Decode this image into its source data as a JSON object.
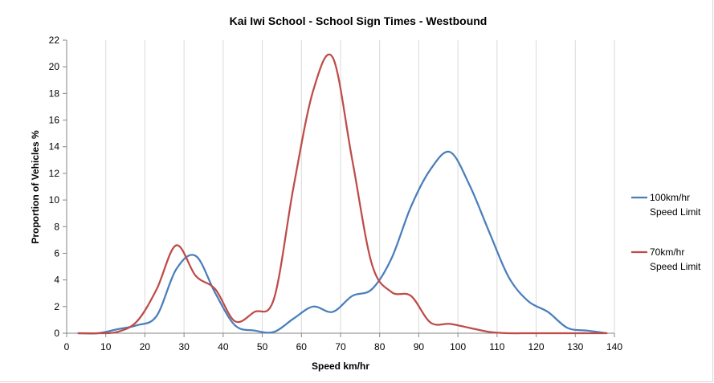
{
  "chart_data": {
    "type": "line",
    "title": "Kai Iwi School - School Sign Times - Westbound",
    "xlabel": "Speed km/hr",
    "ylabel": "Proportion of Vehicles %",
    "xlim": [
      0,
      140
    ],
    "ylim": [
      0,
      22
    ],
    "xticks": [
      0,
      10,
      20,
      30,
      40,
      50,
      60,
      70,
      80,
      90,
      100,
      110,
      120,
      130,
      140
    ],
    "yticks": [
      0,
      2,
      4,
      6,
      8,
      10,
      12,
      14,
      16,
      18,
      20,
      22
    ],
    "grid": "vertical",
    "legend_position": "right",
    "series": [
      {
        "name": "100km/hr Speed Limit",
        "legend_lines": [
          "100km/hr",
          "Speed Limit"
        ],
        "color": "#4a7ebb",
        "x": [
          3,
          8,
          13,
          18,
          23,
          28,
          33,
          38,
          43,
          48,
          53,
          58,
          63,
          68,
          73,
          78,
          83,
          88,
          93,
          98,
          103,
          108,
          113,
          118,
          123,
          128,
          133,
          138
        ],
        "y": [
          0,
          0,
          0.3,
          0.6,
          1.3,
          4.8,
          5.8,
          3.0,
          0.6,
          0.2,
          0.1,
          1.1,
          2.0,
          1.6,
          2.8,
          3.3,
          5.6,
          9.5,
          12.3,
          13.6,
          11.1,
          7.6,
          4.2,
          2.4,
          1.6,
          0.4,
          0.2,
          0
        ]
      },
      {
        "name": "70km/hr Speed Limit",
        "legend_lines": [
          "70km/hr",
          "Speed Limit"
        ],
        "color": "#be4b48",
        "x": [
          3,
          8,
          13,
          18,
          23,
          28,
          33,
          38,
          43,
          48,
          53,
          58,
          63,
          68,
          73,
          78,
          83,
          88,
          93,
          98,
          103,
          108,
          113,
          118,
          123,
          128,
          133,
          138
        ],
        "y": [
          0,
          0,
          0.1,
          0.9,
          3.3,
          6.6,
          4.3,
          3.3,
          0.9,
          1.6,
          2.6,
          11.0,
          18.2,
          20.7,
          13.0,
          5.2,
          3.1,
          2.8,
          0.8,
          0.7,
          0.4,
          0.1,
          0,
          0,
          0,
          0,
          0,
          0
        ]
      }
    ]
  }
}
